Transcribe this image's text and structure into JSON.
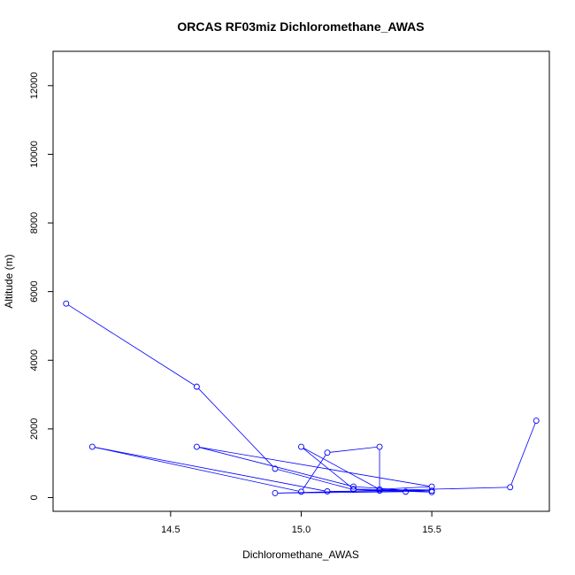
{
  "chart_data": {
    "type": "line",
    "title": "ORCAS RF03miz Dichloromethane_AWAS",
    "xlabel": "Dichloromethane_AWAS",
    "ylabel": "Altitude (m)",
    "xlim": [
      14.05,
      15.95
    ],
    "ylim": [
      -400,
      13000
    ],
    "x_ticks": [
      14.5,
      15.0,
      15.5
    ],
    "x_tick_labels": [
      "14.5",
      "15.0",
      "15.5"
    ],
    "y_ticks": [
      0,
      2000,
      4000,
      6000,
      8000,
      10000,
      12000
    ],
    "y_tick_labels": [
      "0",
      "2000",
      "4000",
      "6000",
      "8000",
      "10000",
      "12000"
    ],
    "grid": false,
    "series": [
      {
        "color": "#0000ff",
        "marker": "open-circle",
        "points": [
          {
            "x": 14.1,
            "y": 5650
          },
          {
            "x": 14.6,
            "y": 3230
          },
          {
            "x": 14.9,
            "y": 840
          },
          {
            "x": 15.2,
            "y": 230
          },
          {
            "x": 15.5,
            "y": 160
          },
          {
            "x": 15.2,
            "y": 320
          },
          {
            "x": 14.6,
            "y": 1480
          },
          {
            "x": 15.5,
            "y": 320
          },
          {
            "x": 15.3,
            "y": 240
          },
          {
            "x": 15.0,
            "y": 1480
          },
          {
            "x": 15.2,
            "y": 250
          },
          {
            "x": 15.5,
            "y": 200
          },
          {
            "x": 15.1,
            "y": 180
          },
          {
            "x": 14.2,
            "y": 1480
          },
          {
            "x": 15.0,
            "y": 170
          },
          {
            "x": 15.1,
            "y": 1310
          },
          {
            "x": 15.3,
            "y": 1480
          },
          {
            "x": 15.3,
            "y": 200
          },
          {
            "x": 15.4,
            "y": 170
          },
          {
            "x": 14.9,
            "y": 130
          },
          {
            "x": 15.8,
            "y": 300
          },
          {
            "x": 15.9,
            "y": 2240
          }
        ]
      }
    ]
  }
}
